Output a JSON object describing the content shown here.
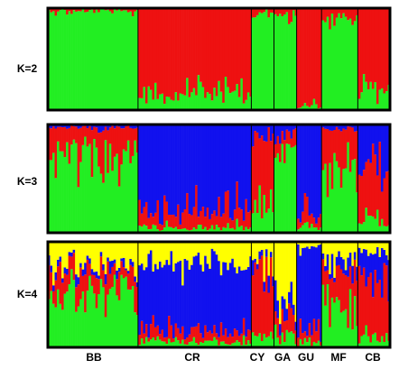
{
  "chart_data": {
    "type": "bar",
    "subtype": "stacked-structure-admixture",
    "panels": [
      {
        "label": "K=2",
        "k": 2,
        "colors": [
          "#22ee22",
          "#ee1111"
        ]
      },
      {
        "label": "K=3",
        "k": 3,
        "colors": [
          "#22ee22",
          "#ee1111",
          "#1111ee"
        ]
      },
      {
        "label": "K=4",
        "k": 4,
        "colors": [
          "#22ee22",
          "#ee1111",
          "#1111ee",
          "#ffff00"
        ]
      }
    ],
    "populations": [
      {
        "name": "BB",
        "n": 40,
        "k2": [
          0.97,
          0.03
        ],
        "k3": [
          0.72,
          0.25,
          0.03
        ],
        "k4": [
          0.55,
          0.2,
          0.05,
          0.2
        ]
      },
      {
        "name": "CR",
        "n": 50,
        "k2": [
          0.18,
          0.82
        ],
        "k3": [
          0.05,
          0.15,
          0.8
        ],
        "k4": [
          0.05,
          0.1,
          0.65,
          0.2
        ]
      },
      {
        "name": "CY",
        "n": 10,
        "k2": [
          0.95,
          0.05
        ],
        "k3": [
          0.2,
          0.7,
          0.1
        ],
        "k4": [
          0.1,
          0.6,
          0.1,
          0.2
        ]
      },
      {
        "name": "GA",
        "n": 10,
        "k2": [
          0.92,
          0.08
        ],
        "k3": [
          0.75,
          0.15,
          0.1
        ],
        "k4": [
          0.1,
          0.15,
          0.15,
          0.6
        ]
      },
      {
        "name": "GU",
        "n": 11,
        "k2": [
          0.05,
          0.95
        ],
        "k3": [
          0.05,
          0.1,
          0.85
        ],
        "k4": [
          0.05,
          0.1,
          0.8,
          0.05
        ]
      },
      {
        "name": "MF",
        "n": 16,
        "k2": [
          0.9,
          0.1
        ],
        "k3": [
          0.55,
          0.4,
          0.05
        ],
        "k4": [
          0.4,
          0.3,
          0.1,
          0.2
        ]
      },
      {
        "name": "CB",
        "n": 14,
        "k2": [
          0.2,
          0.8
        ],
        "k3": [
          0.15,
          0.5,
          0.35
        ],
        "k4": [
          0.1,
          0.55,
          0.25,
          0.1
        ]
      }
    ],
    "xlabel": "",
    "ylabel": "",
    "ylim": [
      0,
      1
    ],
    "grid": false,
    "legend": "none"
  }
}
